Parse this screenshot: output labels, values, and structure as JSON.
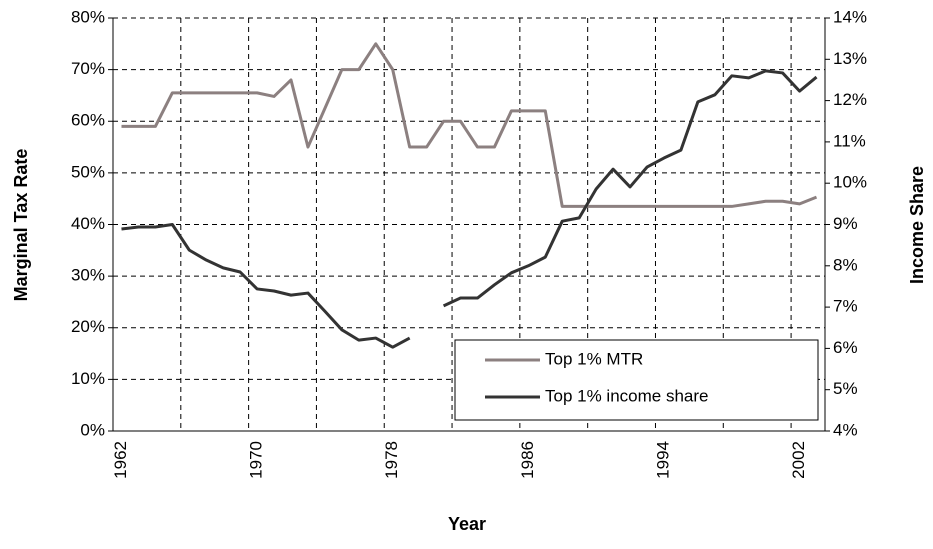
{
  "chart_data": {
    "type": "line",
    "x_label": "Year",
    "y_label": "Marginal Tax Rate",
    "y2_label": "Income Share",
    "categories": [
      "1962",
      null,
      null,
      null,
      null,
      null,
      null,
      null,
      "1970",
      null,
      null,
      null,
      null,
      null,
      null,
      null,
      "1978",
      null,
      null,
      null,
      null,
      null,
      null,
      null,
      "1986",
      null,
      null,
      null,
      null,
      null,
      null,
      null,
      "1994",
      null,
      null,
      null,
      null,
      null,
      null,
      null,
      "2002",
      null
    ],
    "ylim": [
      0,
      80
    ],
    "yticks": [
      {
        "value": 0,
        "label": "0%"
      },
      {
        "value": 10,
        "label": "10%"
      },
      {
        "value": 20,
        "label": "20%"
      },
      {
        "value": 30,
        "label": "30%"
      },
      {
        "value": 40,
        "label": "40%"
      },
      {
        "value": 50,
        "label": "50%"
      },
      {
        "value": 60,
        "label": "60%"
      },
      {
        "value": 70,
        "label": "70%"
      },
      {
        "value": 80,
        "label": "80%"
      }
    ],
    "y2lim": [
      4,
      14
    ],
    "y2ticks": [
      {
        "value": 4,
        "label": "4%"
      },
      {
        "value": 5,
        "label": "5%"
      },
      {
        "value": 6,
        "label": "6%"
      },
      {
        "value": 7,
        "label": "7%"
      },
      {
        "value": 8,
        "label": "8%"
      },
      {
        "value": 9,
        "label": "9%"
      },
      {
        "value": 10,
        "label": "10%"
      },
      {
        "value": 11,
        "label": "11%"
      },
      {
        "value": 12,
        "label": "12%"
      },
      {
        "value": 13,
        "label": "13%"
      },
      {
        "value": 14,
        "label": "14%"
      }
    ],
    "grid": true,
    "legend_position": "lower-right",
    "series": [
      {
        "name": "Top 1% MTR",
        "color": "#8c8080",
        "axis": "y",
        "values": [
          59,
          59,
          59,
          65.5,
          65.5,
          65.5,
          65.5,
          65.5,
          65.5,
          64.8,
          68,
          55,
          62.5,
          70,
          70,
          75,
          70,
          55,
          55,
          60,
          60,
          55,
          55,
          62,
          62,
          62,
          43.5,
          43.5,
          43.5,
          43.5,
          43.5,
          43.5,
          43.5,
          43.5,
          43.5,
          43.5,
          43.5,
          44,
          44.5,
          44.5,
          44,
          45.3
        ]
      },
      {
        "name": "Top 1% income share",
        "color": "#333333",
        "axis": "y2",
        "values": [
          8.89,
          8.94,
          8.94,
          9.0,
          8.38,
          8.14,
          7.95,
          7.85,
          7.44,
          7.39,
          7.29,
          7.34,
          6.9,
          6.45,
          6.2,
          6.25,
          6.03,
          6.25,
          null,
          7.03,
          7.22,
          7.22,
          7.54,
          7.83,
          8.0,
          8.21,
          9.08,
          9.16,
          9.86,
          10.34,
          9.91,
          10.39,
          10.61,
          10.8,
          11.97,
          12.14,
          12.6,
          12.55,
          12.72,
          12.67,
          12.23,
          12.57
        ]
      }
    ]
  }
}
